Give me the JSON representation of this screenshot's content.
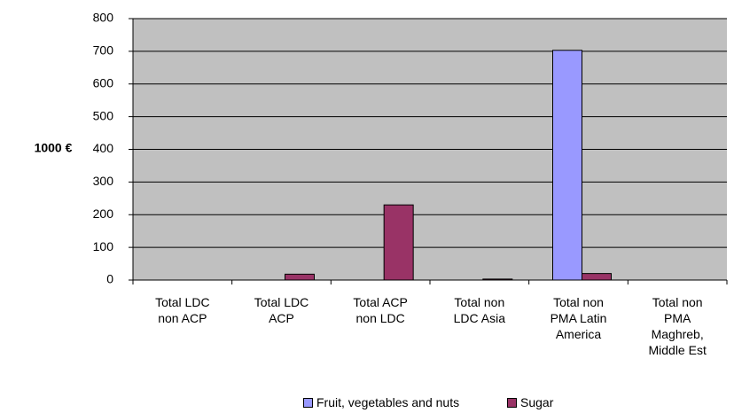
{
  "chart_data": {
    "type": "bar",
    "y_label": "1000 €",
    "categories": [
      "Total LDC non ACP",
      "Total LDC ACP",
      "Total ACP non LDC",
      "Total non LDC Asia",
      "Total non PMA Latin America",
      "Total non PMA Maghreb, Middle Est"
    ],
    "series": [
      {
        "name": "Fruit, vegetables and nuts",
        "color": "#9999ff",
        "values": [
          0,
          0,
          0,
          0,
          703,
          0
        ]
      },
      {
        "name": "Sugar",
        "color": "#993366",
        "values": [
          0,
          18,
          230,
          3,
          20,
          0
        ]
      }
    ],
    "ylim": [
      0,
      800
    ],
    "yticks": [
      0,
      100,
      200,
      300,
      400,
      500,
      600,
      700,
      800
    ],
    "grid": true,
    "plot_background": "#c0c0c0",
    "legend": "bottom"
  }
}
